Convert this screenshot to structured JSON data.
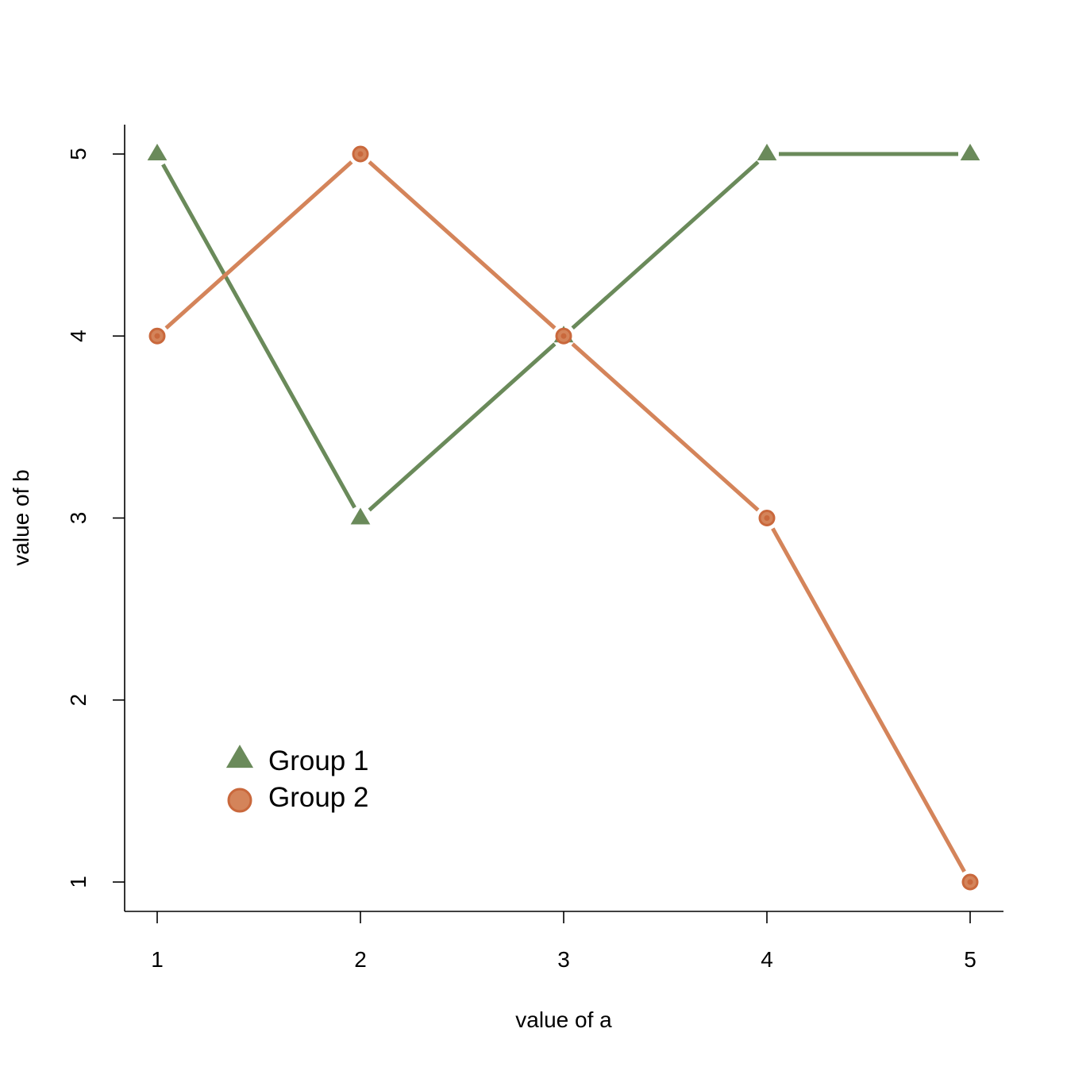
{
  "chart_data": {
    "type": "line",
    "title": "",
    "xlabel": "value of a",
    "ylabel": "value of b",
    "xlim": [
      1,
      5
    ],
    "ylim": [
      1,
      5
    ],
    "x_ticks": [
      "1",
      "2",
      "3",
      "4",
      "5"
    ],
    "y_ticks": [
      "1",
      "2",
      "3",
      "4",
      "5"
    ],
    "grid": false,
    "legend_position": "bottom-left",
    "series": [
      {
        "name": "Group 1",
        "marker": "triangle",
        "color": "#6a8a5a",
        "x": [
          1,
          2,
          3,
          4,
          5
        ],
        "y": [
          5,
          3,
          4,
          5,
          5
        ]
      },
      {
        "name": "Group 2",
        "marker": "circle",
        "color": "#d4845a",
        "x": [
          1,
          2,
          3,
          4,
          5
        ],
        "y": [
          4,
          5,
          4,
          3,
          1
        ]
      }
    ]
  }
}
